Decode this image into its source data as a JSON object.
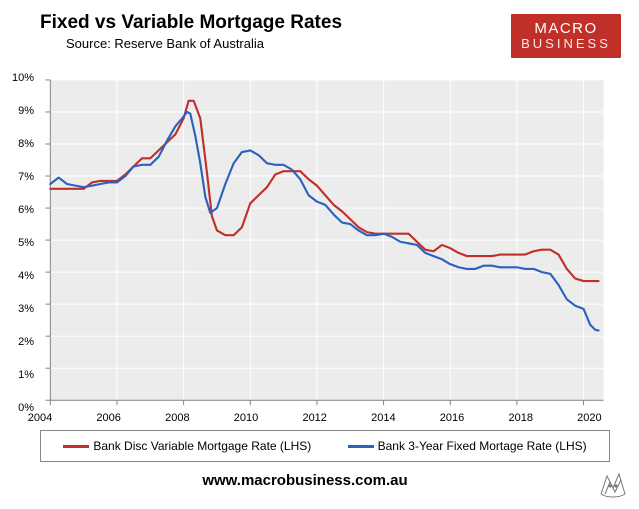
{
  "title": "Fixed vs Variable Mortgage Rates",
  "subtitle": "Source: Reserve Bank of Australia",
  "logo": {
    "line1": "MACRO",
    "line2": "BUSINESS",
    "bg": "#c03028"
  },
  "url": "www.macrobusiness.com.au",
  "chart": {
    "type": "line",
    "background_color": "#ececec",
    "grid_color": "#ffffff",
    "grid_width": 1,
    "axis_color": "#808080",
    "xlim": [
      2004,
      2020.6
    ],
    "ylim": [
      0,
      10
    ],
    "xticks": [
      2004,
      2006,
      2008,
      2010,
      2012,
      2014,
      2016,
      2018,
      2020
    ],
    "yticks": [
      0,
      1,
      2,
      3,
      4,
      5,
      6,
      7,
      8,
      9,
      10
    ],
    "ytick_format": "percent",
    "xlabel_fontsize": 11,
    "ylabel_fontsize": 11,
    "line_width": 2.2,
    "series": [
      {
        "name": "Bank Disc Variable Mortgage Rate (LHS)",
        "color": "#c0302a",
        "points": [
          [
            2004.0,
            6.6
          ],
          [
            2004.25,
            6.6
          ],
          [
            2004.5,
            6.6
          ],
          [
            2004.75,
            6.6
          ],
          [
            2005.0,
            6.6
          ],
          [
            2005.25,
            6.8
          ],
          [
            2005.5,
            6.85
          ],
          [
            2005.75,
            6.85
          ],
          [
            2006.0,
            6.85
          ],
          [
            2006.25,
            7.05
          ],
          [
            2006.5,
            7.3
          ],
          [
            2006.75,
            7.55
          ],
          [
            2007.0,
            7.55
          ],
          [
            2007.25,
            7.8
          ],
          [
            2007.5,
            8.05
          ],
          [
            2007.75,
            8.3
          ],
          [
            2008.0,
            8.8
          ],
          [
            2008.15,
            9.35
          ],
          [
            2008.3,
            9.35
          ],
          [
            2008.5,
            8.8
          ],
          [
            2008.7,
            7.1
          ],
          [
            2008.85,
            5.75
          ],
          [
            2009.0,
            5.3
          ],
          [
            2009.25,
            5.15
          ],
          [
            2009.5,
            5.15
          ],
          [
            2009.75,
            5.4
          ],
          [
            2010.0,
            6.15
          ],
          [
            2010.25,
            6.4
          ],
          [
            2010.5,
            6.65
          ],
          [
            2010.75,
            7.05
          ],
          [
            2011.0,
            7.15
          ],
          [
            2011.25,
            7.15
          ],
          [
            2011.5,
            7.15
          ],
          [
            2011.75,
            6.9
          ],
          [
            2012.0,
            6.7
          ],
          [
            2012.25,
            6.4
          ],
          [
            2012.5,
            6.1
          ],
          [
            2012.75,
            5.9
          ],
          [
            2013.0,
            5.65
          ],
          [
            2013.25,
            5.4
          ],
          [
            2013.5,
            5.25
          ],
          [
            2013.75,
            5.2
          ],
          [
            2014.0,
            5.2
          ],
          [
            2014.25,
            5.2
          ],
          [
            2014.5,
            5.2
          ],
          [
            2014.75,
            5.2
          ],
          [
            2015.0,
            4.95
          ],
          [
            2015.25,
            4.7
          ],
          [
            2015.5,
            4.65
          ],
          [
            2015.75,
            4.85
          ],
          [
            2016.0,
            4.75
          ],
          [
            2016.25,
            4.6
          ],
          [
            2016.5,
            4.5
          ],
          [
            2016.75,
            4.5
          ],
          [
            2017.0,
            4.5
          ],
          [
            2017.25,
            4.5
          ],
          [
            2017.5,
            4.55
          ],
          [
            2017.75,
            4.55
          ],
          [
            2018.0,
            4.55
          ],
          [
            2018.25,
            4.55
          ],
          [
            2018.5,
            4.65
          ],
          [
            2018.75,
            4.7
          ],
          [
            2019.0,
            4.7
          ],
          [
            2019.25,
            4.55
          ],
          [
            2019.5,
            4.1
          ],
          [
            2019.75,
            3.8
          ],
          [
            2020.0,
            3.72
          ],
          [
            2020.25,
            3.72
          ],
          [
            2020.45,
            3.72
          ]
        ]
      },
      {
        "name": "Bank 3-Year Fixed Mortage Rate (LHS)",
        "color": "#2b62bf",
        "points": [
          [
            2004.0,
            6.75
          ],
          [
            2004.25,
            6.95
          ],
          [
            2004.5,
            6.75
          ],
          [
            2004.75,
            6.7
          ],
          [
            2005.0,
            6.65
          ],
          [
            2005.25,
            6.7
          ],
          [
            2005.5,
            6.75
          ],
          [
            2005.75,
            6.8
          ],
          [
            2006.0,
            6.8
          ],
          [
            2006.25,
            7.0
          ],
          [
            2006.5,
            7.3
          ],
          [
            2006.75,
            7.35
          ],
          [
            2007.0,
            7.35
          ],
          [
            2007.25,
            7.6
          ],
          [
            2007.5,
            8.1
          ],
          [
            2007.75,
            8.55
          ],
          [
            2008.0,
            8.85
          ],
          [
            2008.1,
            9.0
          ],
          [
            2008.2,
            8.95
          ],
          [
            2008.35,
            8.25
          ],
          [
            2008.5,
            7.4
          ],
          [
            2008.65,
            6.35
          ],
          [
            2008.8,
            5.85
          ],
          [
            2009.0,
            6.0
          ],
          [
            2009.25,
            6.75
          ],
          [
            2009.5,
            7.4
          ],
          [
            2009.75,
            7.75
          ],
          [
            2010.0,
            7.8
          ],
          [
            2010.25,
            7.65
          ],
          [
            2010.5,
            7.4
          ],
          [
            2010.75,
            7.35
          ],
          [
            2011.0,
            7.35
          ],
          [
            2011.25,
            7.2
          ],
          [
            2011.5,
            6.9
          ],
          [
            2011.75,
            6.4
          ],
          [
            2012.0,
            6.2
          ],
          [
            2012.25,
            6.1
          ],
          [
            2012.5,
            5.8
          ],
          [
            2012.75,
            5.55
          ],
          [
            2013.0,
            5.5
          ],
          [
            2013.25,
            5.3
          ],
          [
            2013.5,
            5.15
          ],
          [
            2013.75,
            5.15
          ],
          [
            2014.0,
            5.2
          ],
          [
            2014.25,
            5.1
          ],
          [
            2014.5,
            4.95
          ],
          [
            2014.75,
            4.9
          ],
          [
            2015.0,
            4.85
          ],
          [
            2015.25,
            4.6
          ],
          [
            2015.5,
            4.5
          ],
          [
            2015.75,
            4.4
          ],
          [
            2016.0,
            4.25
          ],
          [
            2016.25,
            4.15
          ],
          [
            2016.5,
            4.1
          ],
          [
            2016.75,
            4.1
          ],
          [
            2017.0,
            4.2
          ],
          [
            2017.25,
            4.2
          ],
          [
            2017.5,
            4.15
          ],
          [
            2017.75,
            4.15
          ],
          [
            2018.0,
            4.15
          ],
          [
            2018.25,
            4.1
          ],
          [
            2018.5,
            4.1
          ],
          [
            2018.75,
            4.0
          ],
          [
            2019.0,
            3.95
          ],
          [
            2019.25,
            3.6
          ],
          [
            2019.5,
            3.15
          ],
          [
            2019.75,
            2.95
          ],
          [
            2020.0,
            2.85
          ],
          [
            2020.2,
            2.35
          ],
          [
            2020.35,
            2.2
          ],
          [
            2020.45,
            2.18
          ]
        ]
      }
    ]
  },
  "legend": {
    "border_color": "#888888",
    "fontsize": 12
  }
}
